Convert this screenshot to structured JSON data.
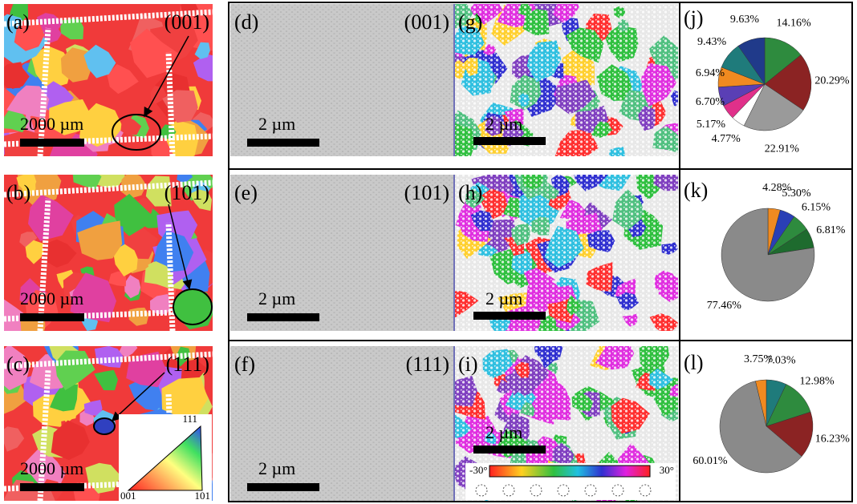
{
  "ebsd": [
    {
      "label": "(a)",
      "orientation": "(001)",
      "scale_bar": "2000 µm"
    },
    {
      "label": "(b)",
      "orientation": "(101)",
      "scale_bar": "2000 µm"
    },
    {
      "label": "(c)",
      "orientation": "(111)",
      "scale_bar": "2000 µm"
    }
  ],
  "legend_triangle": {
    "top": "111",
    "left": "001",
    "right": "101"
  },
  "sem": [
    {
      "label": "(d)",
      "orientation": "(001)",
      "scale_bar": "2 µm"
    },
    {
      "label": "(e)",
      "orientation": "(101)",
      "scale_bar": "2 µm"
    },
    {
      "label": "(f)",
      "orientation": "(111)",
      "scale_bar": "2 µm"
    }
  ],
  "orientation_maps": [
    {
      "label": "(g)",
      "scale_bar": "2 µm"
    },
    {
      "label": "(h)",
      "scale_bar": "2 µm"
    },
    {
      "label": "(i)",
      "scale_bar": "2 µm"
    }
  ],
  "color_scale": {
    "min": "-30°",
    "max": "30°"
  },
  "pies": [
    {
      "label": "(j)",
      "values": [
        14.16,
        20.29,
        22.91,
        4.77,
        5.17,
        6.7,
        6.94,
        9.43,
        9.63
      ],
      "value_labels": [
        "14.16%",
        "20.29%",
        "22.91%",
        "4.77%",
        "5.17%",
        "6.70%",
        "6.94%",
        "9.43%",
        "9.63%"
      ],
      "colors": [
        "#2e8b3e",
        "#8b2323",
        "#9a9a9a",
        "#ffffff",
        "#e0308a",
        "#5a3fb5",
        "#f08a20",
        "#1f7b7b",
        "#203a8a"
      ]
    },
    {
      "label": "(k)",
      "values": [
        4.28,
        5.3,
        6.15,
        6.81,
        77.46
      ],
      "value_labels": [
        "4.28%",
        "5.30%",
        "6.15%",
        "6.81%",
        "77.46%"
      ],
      "colors": [
        "#f08a20",
        "#2a3fb5",
        "#2e8b3e",
        "#1e6b2e",
        "#8a8a8a"
      ]
    },
    {
      "label": "(l)",
      "values": [
        7.03,
        12.98,
        16.23,
        60.01,
        3.75
      ],
      "value_labels": [
        "7.03%",
        "12.98%",
        "16.23%",
        "60.01%",
        "3.75%"
      ],
      "colors": [
        "#1f7b7b",
        "#2e8b3e",
        "#8b2323",
        "#8a8a8a",
        "#f08a20"
      ]
    }
  ]
}
